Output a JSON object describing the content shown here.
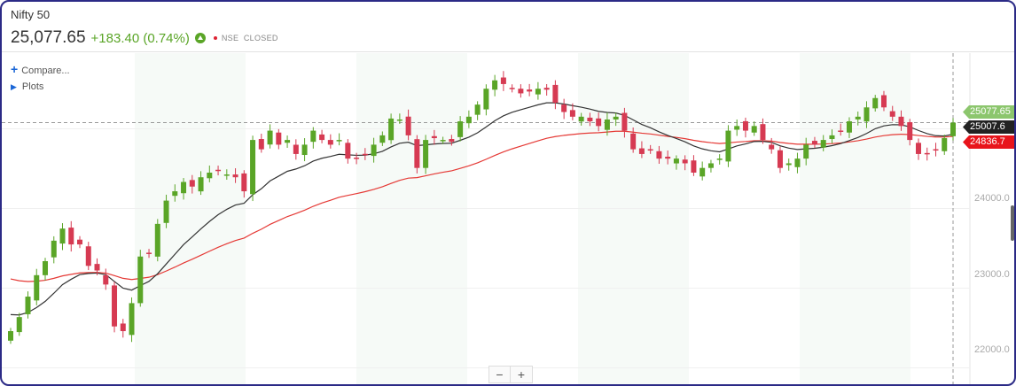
{
  "header": {
    "title": "Nifty 50",
    "price": "25,077.65",
    "change": "+183.40 (0.74%)",
    "exchange": "NSE",
    "status": "CLOSED"
  },
  "toolbar": {
    "compare": "Compare...",
    "plots": "Plots"
  },
  "zoom": {
    "minus": "−",
    "plus": "+"
  },
  "price_tags": {
    "last": "25077.65",
    "ma_black": "25007.6",
    "ma_red": "24836.7"
  },
  "colors": {
    "up": "#5aa527",
    "down": "#d63a52",
    "ma_short": "#333333",
    "ma_long": "#e53935",
    "last_tag": "#8cc66d",
    "red_tag": "#e8141b"
  },
  "chart_data": {
    "type": "candlestick",
    "y_ticks": [
      "24000.0",
      "23000.0",
      "22000.0"
    ],
    "ylim": [
      21750,
      25950
    ],
    "closes": [
      22461,
      22637,
      22894,
      23163,
      23339,
      23596,
      23748,
      23549,
      23549,
      23280,
      23222,
      23046,
      22520,
      22461,
      22812,
      23397,
      23432,
      23807,
      24099,
      24216,
      24333,
      24275,
      24392,
      24450,
      24474,
      24427,
      24392,
      24216,
      24860,
      24743,
      24977,
      24801,
      24860,
      24684,
      24801,
      24977,
      24860,
      24801,
      24860,
      24626,
      24626,
      24684,
      24801,
      24918,
      25129,
      25117,
      24918,
      24509,
      24860,
      24883,
      24860,
      24836,
      25094,
      25152,
      25304,
      25503,
      25608,
      25562,
      25503,
      25445,
      25468,
      25503,
      25491,
      25328,
      25211,
      25152,
      25152,
      25094,
      25035,
      25117,
      25152,
      24977,
      24743,
      24684,
      24743,
      24626,
      24626,
      24626,
      24567,
      24450,
      24509,
      24567,
      24626,
      24977,
      25035,
      24977,
      25035,
      24860,
      24743,
      24509,
      24567,
      24626,
      24801,
      24801,
      24860,
      24918,
      24977,
      25094,
      25152,
      25269,
      25386,
      25269,
      25152,
      25035,
      24860,
      24684,
      24684,
      24743,
      24883,
      25077.65
    ]
  }
}
